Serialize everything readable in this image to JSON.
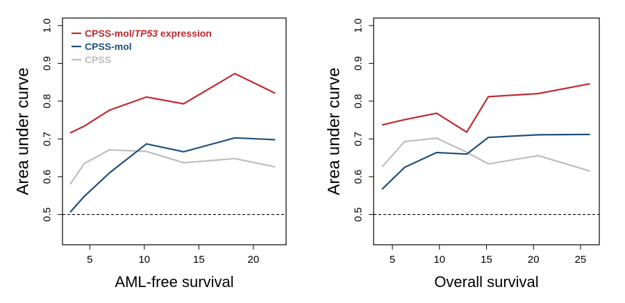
{
  "chart_data": [
    {
      "type": "line",
      "xlabel": "AML-free survival",
      "ylabel": "Area under curve",
      "xlim": [
        2.5,
        23
      ],
      "ylim": [
        0.42,
        1.02
      ],
      "xticks": [
        5,
        10,
        15,
        20
      ],
      "yticks": [
        0.5,
        0.6,
        0.7,
        0.8,
        0.9,
        1.0
      ],
      "ytick_labels": [
        "0.5",
        "0.6",
        "0.7",
        "0.8",
        "0.9",
        "1.0"
      ],
      "reference_line": {
        "y": 0.5,
        "style": "dashed"
      },
      "legend": {
        "placement": "top-left",
        "entries": [
          {
            "prefix": "CPSS-mol/",
            "italic": "TP53",
            "suffix": " expression",
            "color": "#c0272d"
          },
          {
            "prefix": "CPSS-mol",
            "italic": "",
            "suffix": "",
            "color": "#1f4e79"
          },
          {
            "prefix": "CPSS",
            "italic": "",
            "suffix": "",
            "color": "#bdbdbd"
          }
        ]
      },
      "series": [
        {
          "name": "CPSS-mol/TP53 expression",
          "color": "#c0272d",
          "x": [
            3.2,
            4.5,
            6.8,
            10.2,
            13.6,
            18.3,
            22.0
          ],
          "y": [
            0.716,
            0.734,
            0.776,
            0.811,
            0.793,
            0.873,
            0.821
          ]
        },
        {
          "name": "CPSS-mol",
          "color": "#1f4e79",
          "x": [
            3.2,
            4.5,
            6.8,
            10.2,
            13.6,
            18.3,
            22.0
          ],
          "y": [
            0.506,
            0.548,
            0.61,
            0.687,
            0.666,
            0.703,
            0.698
          ]
        },
        {
          "name": "CPSS",
          "color": "#bdbdbd",
          "x": [
            3.2,
            4.5,
            6.8,
            10.2,
            13.6,
            18.3,
            22.0
          ],
          "y": [
            0.58,
            0.635,
            0.671,
            0.667,
            0.637,
            0.648,
            0.626
          ]
        }
      ]
    },
    {
      "type": "line",
      "xlabel": "Overall survival",
      "ylabel": "Area under curve",
      "xlim": [
        3,
        27
      ],
      "ylim": [
        0.42,
        1.02
      ],
      "xticks": [
        5,
        10,
        15,
        20,
        25
      ],
      "yticks": [
        0.5,
        0.6,
        0.7,
        0.8,
        0.9,
        1.0
      ],
      "ytick_labels": [
        "0.5",
        "0.6",
        "0.7",
        "0.8",
        "0.9",
        "1.0"
      ],
      "reference_line": {
        "y": 0.5,
        "style": "dashed"
      },
      "series": [
        {
          "name": "CPSS-mol/TP53 expression",
          "color": "#c0272d",
          "x": [
            3.9,
            6.3,
            9.7,
            12.9,
            15.2,
            20.5,
            26.0
          ],
          "y": [
            0.737,
            0.751,
            0.768,
            0.718,
            0.812,
            0.82,
            0.846
          ]
        },
        {
          "name": "CPSS-mol",
          "color": "#1f4e79",
          "x": [
            3.9,
            6.3,
            9.7,
            12.9,
            15.2,
            20.5,
            26.0
          ],
          "y": [
            0.567,
            0.625,
            0.664,
            0.66,
            0.704,
            0.711,
            0.712
          ]
        },
        {
          "name": "CPSS",
          "color": "#bdbdbd",
          "x": [
            3.9,
            6.3,
            9.7,
            12.9,
            15.2,
            20.5,
            26.0
          ],
          "y": [
            0.626,
            0.693,
            0.702,
            0.665,
            0.634,
            0.656,
            0.615
          ]
        }
      ]
    }
  ]
}
